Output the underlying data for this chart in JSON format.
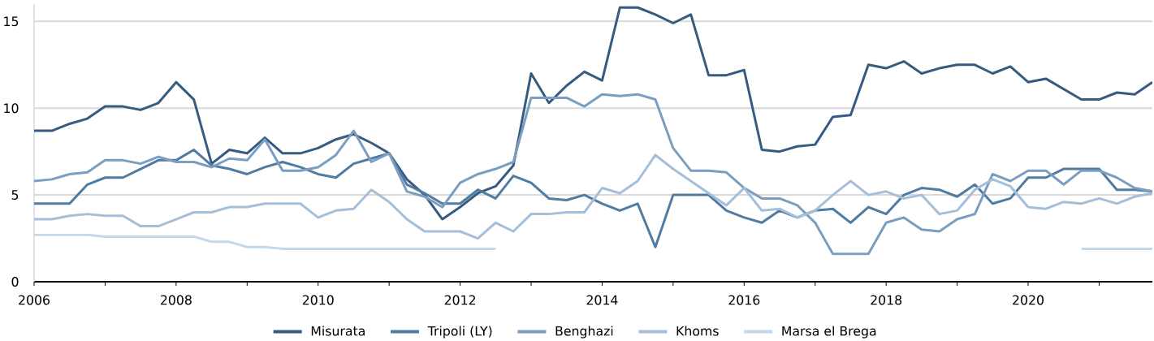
{
  "chart_data": {
    "type": "line",
    "x": [
      2006,
      2006.25,
      2006.5,
      2006.75,
      2007,
      2007.25,
      2007.5,
      2007.75,
      2008,
      2008.25,
      2008.5,
      2008.75,
      2009,
      2009.25,
      2009.5,
      2009.75,
      2010,
      2010.25,
      2010.5,
      2010.75,
      2011,
      2011.25,
      2011.5,
      2011.75,
      2012,
      2012.25,
      2012.5,
      2012.75,
      2013,
      2013.25,
      2013.5,
      2013.75,
      2014,
      2014.25,
      2014.5,
      2014.75,
      2015,
      2015.25,
      2015.5,
      2015.75,
      2016,
      2016.25,
      2016.5,
      2016.75,
      2017,
      2017.25,
      2017.5,
      2017.75,
      2018,
      2018.25,
      2018.5,
      2018.75,
      2019,
      2019.25,
      2019.5,
      2019.75,
      2020,
      2020.25,
      2020.5,
      2020.75,
      2021,
      2021.25,
      2021.5,
      2021.75
    ],
    "series": [
      {
        "name": "Misurata",
        "color": "#375b80",
        "values": [
          8.7,
          8.7,
          9.1,
          9.4,
          10.1,
          10.1,
          9.9,
          10.3,
          11.5,
          10.5,
          6.8,
          7.6,
          7.4,
          8.3,
          7.4,
          7.4,
          7.7,
          8.2,
          8.5,
          8.0,
          7.4,
          5.9,
          5.0,
          3.6,
          4.3,
          5.1,
          5.5,
          6.7,
          12.0,
          10.3,
          11.3,
          12.1,
          11.6,
          15.8,
          15.8,
          15.4,
          14.9,
          15.4,
          11.9,
          11.9,
          12.2,
          7.6,
          7.5,
          7.8,
          7.9,
          9.5,
          9.6,
          12.5,
          12.3,
          12.7,
          12.0,
          12.3,
          12.5,
          12.5,
          12.0,
          12.4,
          11.5,
          11.7,
          11.1,
          10.5,
          10.5,
          10.9,
          10.8,
          11.5
        ]
      },
      {
        "name": "Tripoli (LY)",
        "color": "#4f7ca3",
        "values": [
          4.5,
          4.5,
          4.5,
          5.6,
          6.0,
          6.0,
          6.5,
          7.0,
          7.0,
          7.6,
          6.7,
          6.5,
          6.2,
          6.6,
          6.9,
          6.6,
          6.2,
          6.0,
          6.8,
          7.1,
          7.4,
          5.6,
          5.1,
          4.5,
          4.5,
          5.3,
          4.8,
          6.1,
          5.7,
          4.8,
          4.7,
          5.0,
          4.5,
          4.1,
          4.5,
          2.0,
          5.0,
          5.0,
          5.0,
          4.1,
          3.7,
          3.4,
          4.1,
          3.7,
          4.1,
          4.2,
          3.4,
          4.3,
          3.9,
          5.0,
          5.4,
          5.3,
          4.9,
          5.6,
          4.5,
          4.8,
          6.0,
          6.0,
          6.5,
          6.5,
          6.5,
          5.3,
          5.3,
          5.2
        ]
      },
      {
        "name": "Benghazi",
        "color": "#7b9dc0",
        "values": [
          5.8,
          5.9,
          6.2,
          6.3,
          7.0,
          7.0,
          6.8,
          7.2,
          6.9,
          6.9,
          6.6,
          7.1,
          7.0,
          8.2,
          6.4,
          6.4,
          6.6,
          7.3,
          8.7,
          6.9,
          7.4,
          5.2,
          4.9,
          4.3,
          5.7,
          6.2,
          6.5,
          6.9,
          10.6,
          10.6,
          10.6,
          10.1,
          10.8,
          10.7,
          10.8,
          10.5,
          7.7,
          6.4,
          6.4,
          6.3,
          5.4,
          4.8,
          4.8,
          4.4,
          3.4,
          1.6,
          1.6,
          1.6,
          3.4,
          3.7,
          3.0,
          2.9,
          3.6,
          3.9,
          6.2,
          5.8,
          6.4,
          6.4,
          5.6,
          6.4,
          6.4,
          6.0,
          5.4,
          5.2
        ]
      },
      {
        "name": "Khoms",
        "color": "#a5bfd8",
        "values": [
          3.6,
          3.6,
          3.8,
          3.9,
          3.8,
          3.8,
          3.2,
          3.2,
          3.6,
          4.0,
          4.0,
          4.3,
          4.3,
          4.5,
          4.5,
          4.5,
          3.7,
          4.1,
          4.2,
          5.3,
          4.6,
          3.6,
          2.9,
          2.9,
          2.9,
          2.5,
          3.4,
          2.9,
          3.9,
          3.9,
          4.0,
          4.0,
          5.4,
          5.1,
          5.8,
          7.3,
          6.5,
          5.8,
          5.1,
          4.4,
          5.4,
          4.1,
          4.2,
          3.7,
          4.1,
          5.0,
          5.8,
          5.0,
          5.2,
          4.8,
          5.0,
          3.9,
          4.1,
          5.3,
          5.9,
          5.5,
          4.3,
          4.2,
          4.6,
          4.5,
          4.8,
          4.5,
          4.9,
          5.1
        ]
      },
      {
        "name": "Marsa el Brega",
        "color": "#c4d8ec",
        "values": [
          2.7,
          2.7,
          2.7,
          2.7,
          2.6,
          2.6,
          2.6,
          2.6,
          2.6,
          2.6,
          2.3,
          2.3,
          2.0,
          2.0,
          1.9,
          1.9,
          1.9,
          1.9,
          1.9,
          1.9,
          1.9,
          1.9,
          1.9,
          1.9,
          1.9,
          1.9,
          1.9,
          null,
          null,
          null,
          null,
          null,
          null,
          null,
          null,
          null,
          null,
          null,
          null,
          null,
          null,
          null,
          null,
          null,
          null,
          null,
          null,
          null,
          null,
          null,
          null,
          null,
          null,
          null,
          null,
          null,
          null,
          null,
          null,
          1.9,
          1.9,
          1.9,
          1.9,
          1.9
        ]
      }
    ],
    "xlim": [
      2006,
      2021.75
    ],
    "xticks": [
      2006,
      {
        "value": 2007,
        "label": null
      },
      2008,
      {
        "value": 2009,
        "label": null
      },
      2010,
      {
        "value": 2011,
        "label": null
      },
      2012,
      {
        "value": 2013,
        "label": null
      },
      2014,
      {
        "value": 2015,
        "label": null
      },
      2016,
      {
        "value": 2017,
        "label": null
      },
      2018,
      {
        "value": 2019,
        "label": null
      },
      2020,
      {
        "value": 2021,
        "label": null
      }
    ],
    "ylim": [
      0,
      16
    ],
    "yticks": [
      0,
      5,
      10,
      15
    ],
    "grid": "y",
    "legend": "bottom",
    "line_style": "solid"
  }
}
